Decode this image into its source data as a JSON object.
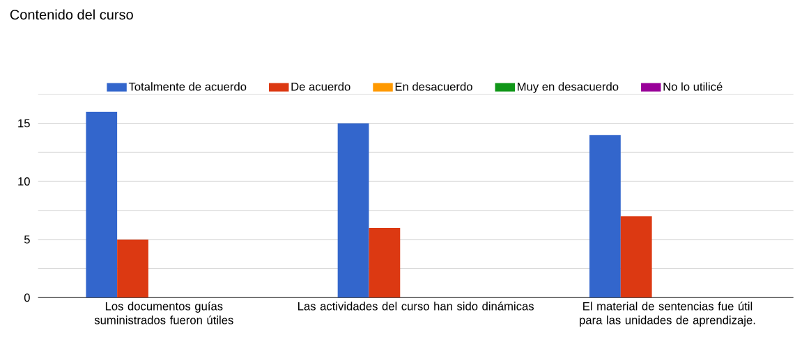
{
  "chart_data": {
    "type": "bar",
    "title": "Contenido del curso",
    "categories": [
      "Los documentos guías suministrados fueron útiles",
      "Las actividades del curso han sido dinámicas",
      "El material de sentencias fue útil para las unidades de aprendizaje."
    ],
    "series": [
      {
        "name": "Totalmente de acuerdo",
        "color": "#3366cc",
        "values": [
          16,
          15,
          14
        ]
      },
      {
        "name": "De acuerdo",
        "color": "#dc3912",
        "values": [
          5,
          6,
          7
        ]
      },
      {
        "name": "En desacuerdo",
        "color": "#ff9900",
        "values": [
          0,
          0,
          0
        ]
      },
      {
        "name": "Muy en desacuerdo",
        "color": "#109618",
        "values": [
          0,
          0,
          0
        ]
      },
      {
        "name": "No lo utilicé",
        "color": "#990099",
        "values": [
          0,
          0,
          0
        ]
      }
    ],
    "ylim": [
      0,
      17.5
    ],
    "yticks": [
      0,
      {
        "value": 2.5,
        "label": null
      },
      5,
      {
        "value": 7.5,
        "label": null
      },
      10,
      {
        "value": 12.5,
        "label": null
      },
      15,
      {
        "value": 17.5,
        "label": null
      }
    ],
    "grid": "y",
    "legend": "top"
  }
}
